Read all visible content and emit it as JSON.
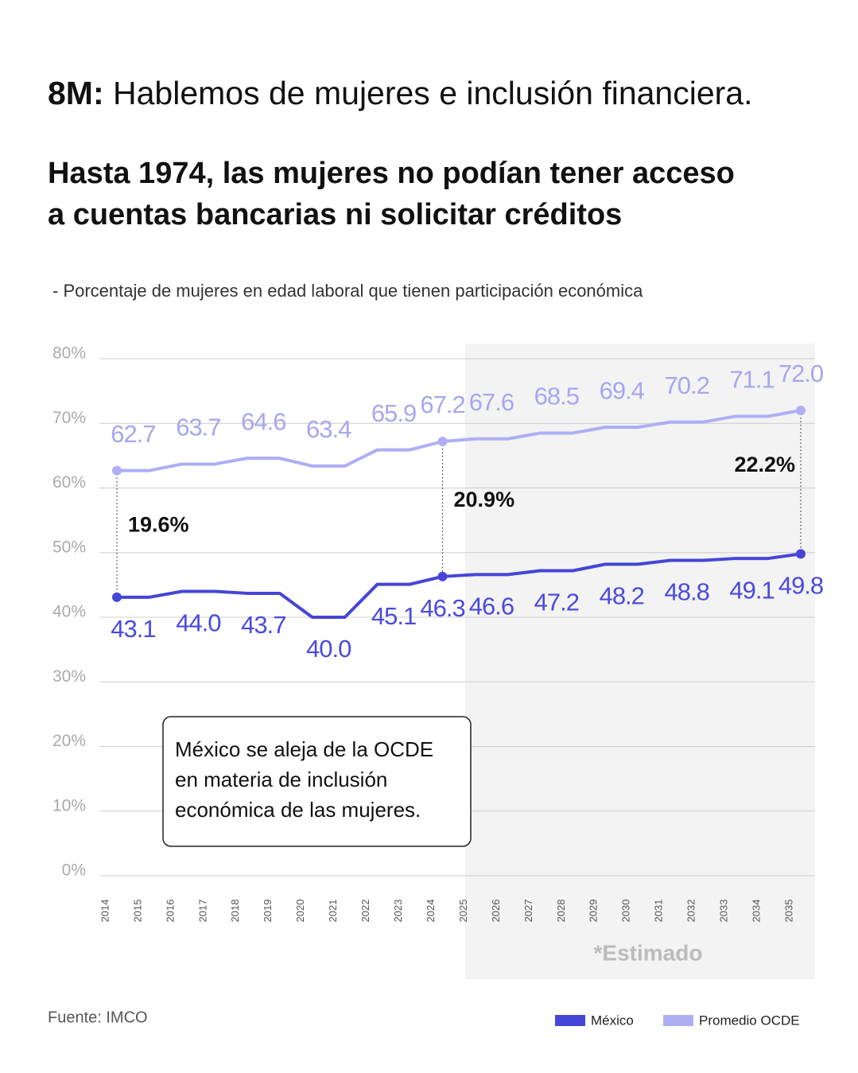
{
  "chart_data": {
    "type": "line",
    "title_bold": "8M:",
    "title": "Hablemos de mujeres e inclusión financiera.",
    "headline": [
      "Hasta 1974, las mujeres no podían tener acceso",
      "a cuentas bancarias ni solicitar créditos"
    ],
    "subtitle": "- Porcentaje de mujeres en edad laboral que tienen participación económica",
    "categories": [
      "2014",
      "2015",
      "2016",
      "2017",
      "2018",
      "2019",
      "2020",
      "2021",
      "2022",
      "2023",
      "2024",
      "2025",
      "2026",
      "2027",
      "2028",
      "2029",
      "2030",
      "2031",
      "2032",
      "2033",
      "2034",
      "2035"
    ],
    "series": [
      {
        "name": "México",
        "color": "#4545d8",
        "label_color": "#4a4adf",
        "values": [
          43.1,
          43.1,
          44.0,
          44.0,
          43.7,
          43.7,
          40.0,
          40.0,
          45.1,
          45.1,
          46.3,
          46.6,
          46.6,
          47.2,
          47.2,
          48.2,
          48.2,
          48.8,
          48.8,
          49.1,
          49.1,
          49.8
        ],
        "value_labels": [
          "43.1",
          null,
          "44.0",
          null,
          "43.7",
          null,
          "40.0",
          null,
          "45.1",
          null,
          "46.3",
          "46.6",
          null,
          "47.2",
          null,
          "48.2",
          null,
          "48.8",
          null,
          "49.1",
          null,
          "49.8"
        ]
      },
      {
        "name": "Promedio OCDE",
        "color": "#aeaef5",
        "label_color": "#a6a6f0",
        "values": [
          62.7,
          62.7,
          63.7,
          63.7,
          64.6,
          64.6,
          63.4,
          63.4,
          65.9,
          65.9,
          67.2,
          67.6,
          67.6,
          68.5,
          68.5,
          69.4,
          69.4,
          70.2,
          70.2,
          71.1,
          71.1,
          72.0
        ],
        "value_labels": [
          "62.7",
          null,
          "63.7",
          null,
          "64.6",
          null,
          "63.4",
          null,
          "65.9",
          null,
          "67.2",
          "67.6",
          null,
          "68.5",
          null,
          "69.4",
          null,
          "70.2",
          null,
          "71.1",
          null,
          "72.0"
        ]
      }
    ],
    "ylim": [
      0,
      80
    ],
    "yticks": [
      {
        "value": 0,
        "label": "0%"
      },
      {
        "value": 10,
        "label": "10%"
      },
      {
        "value": 20,
        "label": "20%"
      },
      {
        "value": 30,
        "label": "30%"
      },
      {
        "value": 40,
        "label": "40%"
      },
      {
        "value": 50,
        "label": "50%"
      },
      {
        "value": 60,
        "label": "60%"
      },
      {
        "value": 70,
        "label": "70%"
      },
      {
        "value": 80,
        "label": "80%"
      }
    ],
    "grid": true,
    "annotations": [
      {
        "x": "2014",
        "label": "19.6%"
      },
      {
        "x": "2024",
        "label": "20.9%"
      },
      {
        "x": "2035",
        "label": "22.2%"
      }
    ],
    "shaded_region": {
      "from": "2025",
      "to": "2035",
      "label": "*Estimado"
    },
    "callout": [
      "México se aleja de la OCDE",
      "en materia de inclusión",
      "económica de las mujeres."
    ],
    "source": "Fuente: IMCO",
    "legend": "bottom-right"
  }
}
